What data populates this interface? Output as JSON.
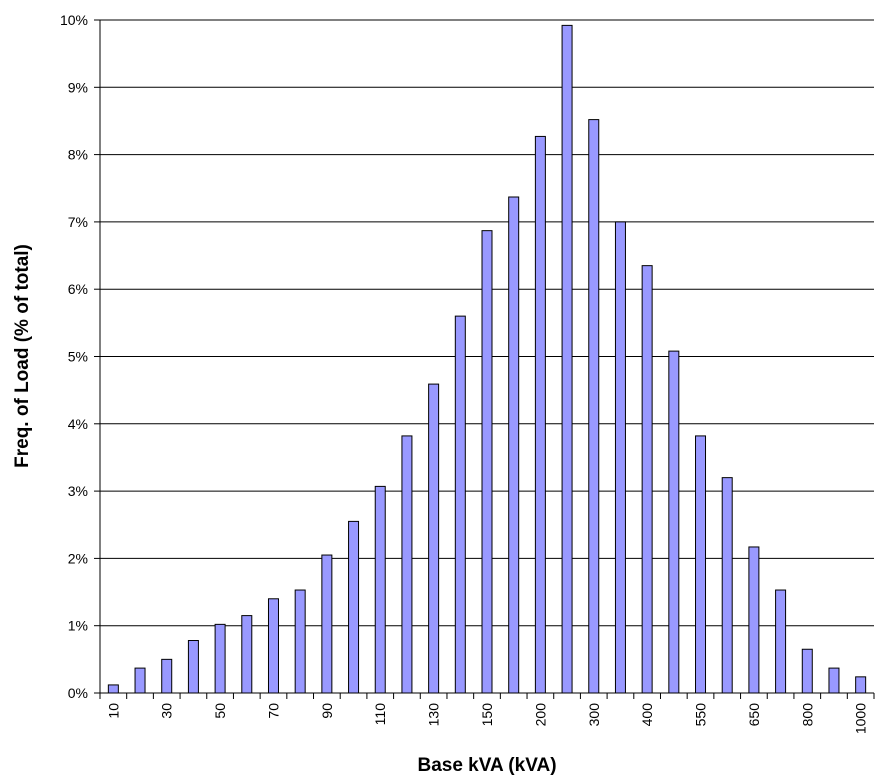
{
  "chart_data": {
    "type": "bar",
    "x_label": "Base kVA (kVA)",
    "y_label": "Freq. of Load (% of total)",
    "categories": [
      "10",
      null,
      "30",
      null,
      "50",
      null,
      "70",
      null,
      "90",
      null,
      "110",
      null,
      "130",
      null,
      "150",
      null,
      "200",
      null,
      "300",
      null,
      "400",
      null,
      "550",
      null,
      "650",
      null,
      "800",
      null,
      "1000"
    ],
    "values": [
      0.12,
      0.37,
      0.5,
      0.78,
      1.02,
      1.15,
      1.4,
      1.53,
      2.05,
      2.55,
      3.07,
      3.82,
      4.59,
      5.6,
      6.87,
      7.37,
      8.27,
      9.92,
      8.52,
      7.0,
      6.35,
      5.08,
      3.82,
      3.2,
      2.17,
      1.53,
      0.65,
      0.37,
      0.24
    ],
    "color": "#9999ff",
    "ylim": [
      0,
      10
    ],
    "yticks": [
      {
        "value": 0,
        "label": "0%"
      },
      {
        "value": 1,
        "label": "1%"
      },
      {
        "value": 2,
        "label": "2%"
      },
      {
        "value": 3,
        "label": "3%"
      },
      {
        "value": 4,
        "label": "4%"
      },
      {
        "value": 5,
        "label": "5%"
      },
      {
        "value": 6,
        "label": "6%"
      },
      {
        "value": 7,
        "label": "7%"
      },
      {
        "value": 8,
        "label": "8%"
      },
      {
        "value": 9,
        "label": "9%"
      },
      {
        "value": 10,
        "label": "10%"
      }
    ],
    "grid": true
  }
}
